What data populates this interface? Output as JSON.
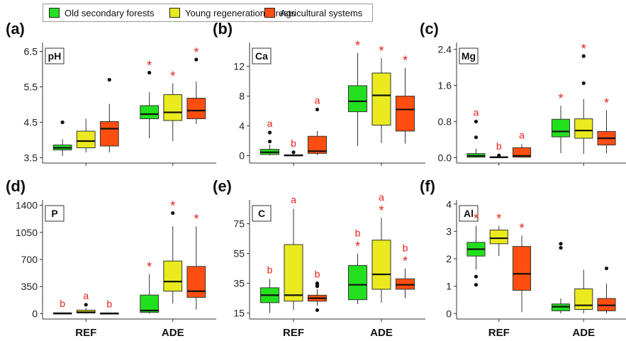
{
  "legend": {
    "items": [
      {
        "label": "Old secondary forests",
        "color": "#22e01e"
      },
      {
        "label": "Young regeneration forests",
        "color": "#eaea1e"
      },
      {
        "label": "Agricultural systems",
        "color": "#ff4e10"
      }
    ]
  },
  "x_groups": [
    "REF",
    "ADE"
  ],
  "chart_data": [
    {
      "type": "boxplot",
      "panel_label": "(a)",
      "variable": "pH",
      "categories": [
        "REF",
        "ADE"
      ],
      "ylim": [
        3.35,
        6.75
      ],
      "yticks": [
        3.5,
        4.5,
        5.5,
        6.5
      ],
      "ytick_labels": [
        "3.5",
        "4.5",
        "5.5",
        "6.5"
      ],
      "series": [
        {
          "name": "Old secondary forests",
          "boxes": [
            {
              "min": 3.55,
              "q1": 3.72,
              "median": 3.78,
              "q3": 3.86,
              "max": 4.02,
              "outliers": [
                4.5
              ]
            },
            {
              "min": 4.05,
              "q1": 4.6,
              "median": 4.73,
              "q3": 4.97,
              "max": 5.35,
              "outliers": [
                5.9
              ]
            }
          ]
        },
        {
          "name": "Young regeneration forests",
          "boxes": [
            {
              "min": 3.65,
              "q1": 3.78,
              "median": 3.97,
              "q3": 4.25,
              "max": 4.6,
              "outliers": []
            },
            {
              "min": 3.97,
              "q1": 4.55,
              "median": 4.78,
              "q3": 5.28,
              "max": 5.6,
              "outliers": []
            }
          ]
        },
        {
          "name": "Agricultural systems",
          "boxes": [
            {
              "min": 3.65,
              "q1": 3.83,
              "median": 4.32,
              "q3": 4.52,
              "max": 5.02,
              "outliers": [
                5.7
              ]
            },
            {
              "min": 4.45,
              "q1": 4.6,
              "median": 4.83,
              "q3": 5.18,
              "max": 5.65,
              "outliers": [
                6.27
              ]
            }
          ]
        }
      ],
      "annotations": [
        [
          "",
          "*"
        ],
        [
          "",
          "*"
        ],
        [
          "",
          "*"
        ]
      ]
    },
    {
      "type": "boxplot",
      "panel_label": "(b)",
      "variable": "Ca",
      "categories": [
        "REF",
        "ADE"
      ],
      "ylim": [
        -1.0,
        15.2
      ],
      "yticks": [
        0,
        4,
        8,
        12
      ],
      "ytick_labels": [
        "0",
        "4",
        "8",
        "12"
      ],
      "series": [
        {
          "name": "Old secondary forests",
          "boxes": [
            {
              "min": 0.0,
              "q1": 0.15,
              "median": 0.45,
              "q3": 0.85,
              "max": 1.5,
              "outliers": [
                1.9,
                3.1
              ]
            },
            {
              "min": 1.3,
              "q1": 5.9,
              "median": 7.3,
              "q3": 9.4,
              "max": 13.8,
              "outliers": []
            }
          ]
        },
        {
          "name": "Young regeneration forests",
          "boxes": [
            {
              "min": 0.0,
              "q1": 0.02,
              "median": 0.05,
              "q3": 0.1,
              "max": 0.2,
              "outliers": [
                0.45
              ]
            },
            {
              "min": 1.7,
              "q1": 4.1,
              "median": 8.1,
              "q3": 11.1,
              "max": 13.1,
              "outliers": []
            }
          ]
        },
        {
          "name": "Agricultural systems",
          "boxes": [
            {
              "min": 0.05,
              "q1": 0.3,
              "median": 0.6,
              "q3": 2.6,
              "max": 3.3,
              "outliers": [
                6.2
              ]
            },
            {
              "min": 1.6,
              "q1": 3.3,
              "median": 6.2,
              "q3": 8.0,
              "max": 11.8,
              "outliers": []
            }
          ]
        }
      ],
      "annotations": [
        [
          "a",
          "*"
        ],
        [
          "b",
          "*"
        ],
        [
          "a",
          "*"
        ]
      ]
    },
    {
      "type": "boxplot",
      "panel_label": "(c)",
      "variable": "Mg",
      "categories": [
        "REF",
        "ADE"
      ],
      "ylim": [
        -0.12,
        2.55
      ],
      "yticks": [
        0.0,
        0.8,
        1.6,
        2.4
      ],
      "ytick_labels": [
        "0.0",
        "0.8",
        "1.6",
        "2.4"
      ],
      "series": [
        {
          "name": "Old secondary forests",
          "boxes": [
            {
              "min": 0.0,
              "q1": 0.01,
              "median": 0.04,
              "q3": 0.09,
              "max": 0.2,
              "outliers": [
                0.45,
                0.8
              ]
            },
            {
              "min": 0.1,
              "q1": 0.46,
              "median": 0.58,
              "q3": 0.85,
              "max": 1.15,
              "outliers": []
            }
          ]
        },
        {
          "name": "Young regeneration forests",
          "boxes": [
            {
              "min": 0.0,
              "q1": 0.0,
              "median": 0.01,
              "q3": 0.02,
              "max": 0.03,
              "outliers": [
                0.05
              ]
            },
            {
              "min": 0.08,
              "q1": 0.43,
              "median": 0.6,
              "q3": 0.86,
              "max": 1.3,
              "outliers": [
                1.65,
                2.25
              ]
            }
          ]
        },
        {
          "name": "Agricultural systems",
          "boxes": [
            {
              "min": 0.0,
              "q1": 0.01,
              "median": 0.04,
              "q3": 0.22,
              "max": 0.3,
              "outliers": []
            },
            {
              "min": 0.1,
              "q1": 0.28,
              "median": 0.43,
              "q3": 0.58,
              "max": 1.05,
              "outliers": []
            }
          ]
        }
      ],
      "annotations": [
        [
          "a",
          "*"
        ],
        [
          "b",
          "*"
        ],
        [
          "a",
          "*"
        ]
      ]
    },
    {
      "type": "boxplot",
      "panel_label": "(d)",
      "variable": "P",
      "categories": [
        "REF",
        "ADE"
      ],
      "ylim": [
        -70,
        1470
      ],
      "yticks": [
        0,
        350,
        700,
        1050,
        1400
      ],
      "ytick_labels": [
        "0",
        "350",
        "700",
        "1050",
        "1400"
      ],
      "series": [
        {
          "name": "Old secondary forests",
          "boxes": [
            {
              "min": 0,
              "q1": 2,
              "median": 5,
              "q3": 8,
              "max": 12,
              "outliers": []
            },
            {
              "min": 0,
              "q1": 15,
              "median": 40,
              "q3": 240,
              "max": 510,
              "outliers": []
            }
          ]
        },
        {
          "name": "Young regeneration forests",
          "boxes": [
            {
              "min": 0,
              "q1": 8,
              "median": 18,
              "q3": 45,
              "max": 75,
              "outliers": [
                115
              ]
            },
            {
              "min": 130,
              "q1": 290,
              "median": 415,
              "q3": 680,
              "max": 1130,
              "outliers": [
                1300
              ]
            }
          ]
        },
        {
          "name": "Agricultural systems",
          "boxes": [
            {
              "min": 0,
              "q1": 2,
              "median": 4,
              "q3": 7,
              "max": 10,
              "outliers": []
            },
            {
              "min": 50,
              "q1": 210,
              "median": 290,
              "q3": 610,
              "max": 1130,
              "outliers": []
            }
          ]
        }
      ],
      "annotations": [
        [
          "b",
          "*"
        ],
        [
          "a",
          "*"
        ],
        [
          "b",
          "*"
        ]
      ]
    },
    {
      "type": "boxplot",
      "panel_label": "(e)",
      "variable": "C",
      "categories": [
        "REF",
        "ADE"
      ],
      "ylim": [
        11,
        91
      ],
      "yticks": [
        15,
        35,
        55,
        75
      ],
      "ytick_labels": [
        "15",
        "35",
        "55",
        "75"
      ],
      "series": [
        {
          "name": "Old secondary forests",
          "boxes": [
            {
              "min": 15,
              "q1": 22,
              "median": 27,
              "q3": 32,
              "max": 38,
              "outliers": []
            },
            {
              "min": 21,
              "q1": 24,
              "median": 34,
              "q3": 47,
              "max": 55,
              "outliers": []
            }
          ]
        },
        {
          "name": "Young regeneration forests",
          "boxes": [
            {
              "min": 17,
              "q1": 23,
              "median": 27,
              "q3": 61,
              "max": 85,
              "outliers": []
            },
            {
              "min": 22,
              "q1": 31,
              "median": 41,
              "q3": 64,
              "max": 79,
              "outliers": []
            }
          ]
        },
        {
          "name": "Agricultural systems",
          "boxes": [
            {
              "min": 20,
              "q1": 23,
              "median": 25,
              "q3": 27,
              "max": 31,
              "outliers": [
                17,
                33,
                34,
                35
              ]
            },
            {
              "min": 25,
              "q1": 31,
              "median": 34,
              "q3": 38,
              "max": 45,
              "outliers": []
            }
          ]
        }
      ],
      "annotations": [
        [
          "b",
          "b\n*"
        ],
        [
          "a",
          "a\n*"
        ],
        [
          "b",
          "b\n*"
        ]
      ]
    },
    {
      "type": "boxplot",
      "panel_label": "(f)",
      "variable": "Al",
      "categories": [
        "REF",
        "ADE"
      ],
      "ylim": [
        -0.2,
        4.15
      ],
      "yticks": [
        0,
        1,
        2,
        3,
        4
      ],
      "ytick_labels": [
        "0",
        "1",
        "2",
        "3",
        "4"
      ],
      "series": [
        {
          "name": "Old secondary forests",
          "boxes": [
            {
              "min": 1.6,
              "q1": 2.1,
              "median": 2.35,
              "q3": 2.6,
              "max": 3.2,
              "outliers": [
                1.05,
                1.35
              ]
            },
            {
              "min": 0.0,
              "q1": 0.1,
              "median": 0.25,
              "q3": 0.35,
              "max": 0.55,
              "outliers": [
                2.4,
                2.55
              ]
            }
          ]
        },
        {
          "name": "Young regeneration forests",
          "boxes": [
            {
              "min": 2.1,
              "q1": 2.55,
              "median": 2.75,
              "q3": 3.05,
              "max": 3.2,
              "outliers": []
            },
            {
              "min": 0.0,
              "q1": 0.15,
              "median": 0.3,
              "q3": 0.9,
              "max": 1.6,
              "outliers": []
            }
          ]
        },
        {
          "name": "Agricultural systems",
          "boxes": [
            {
              "min": 0.05,
              "q1": 0.85,
              "median": 1.45,
              "q3": 2.45,
              "max": 2.85,
              "outliers": []
            },
            {
              "min": 0.0,
              "q1": 0.1,
              "median": 0.3,
              "q3": 0.55,
              "max": 1.1,
              "outliers": [
                1.65
              ]
            }
          ]
        }
      ],
      "annotations": [
        [
          "*",
          ""
        ],
        [
          "*",
          ""
        ],
        [
          "*",
          ""
        ]
      ]
    }
  ]
}
